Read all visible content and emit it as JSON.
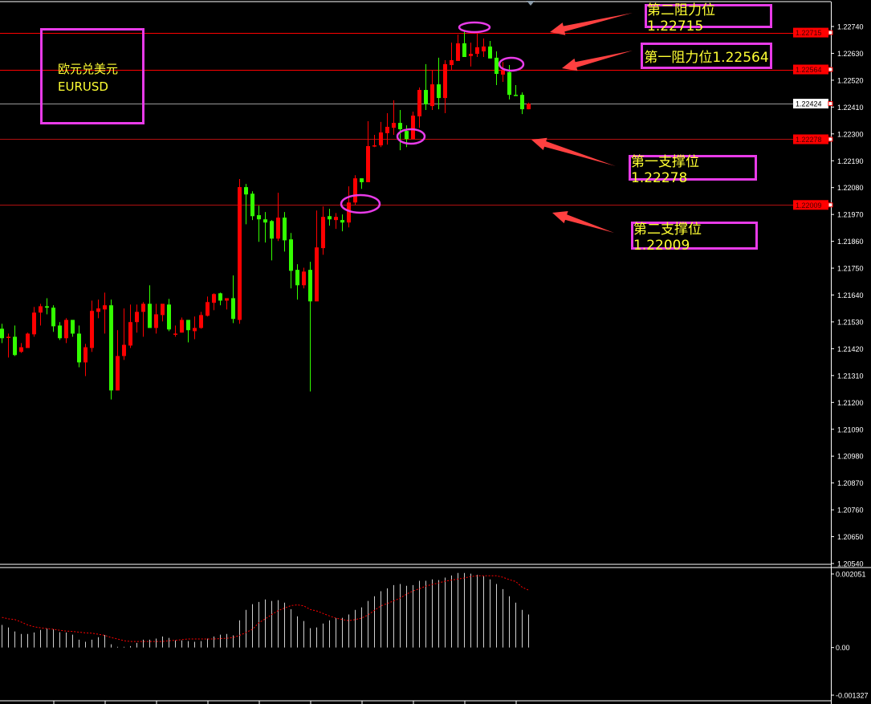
{
  "symbol_box": {
    "name_cn": "欧元兑美元",
    "ticker": "EURUSD"
  },
  "annotations": {
    "resistance_2": "第二阻力位1.22715",
    "resistance_1": "第一阻力位1.22564",
    "support_1": "第一支撑位1.22278",
    "support_2": "第二支撑位1.22009"
  },
  "colors": {
    "background": "#000000",
    "bull_candle": "#ff0000",
    "bear_candle": "#33ff00",
    "annotation_border": "#e83be8",
    "annotation_text": "#ffff33",
    "arrow": "#ff4040",
    "level_line": "#ff0000",
    "macd_histogram": "#d0d0d0",
    "macd_signal": "#ff0000"
  },
  "chart_data": [
    {
      "type": "candlestick",
      "symbol": "EURUSD",
      "ylim": [
        1.2054,
        1.2274
      ],
      "y_ticks": [
        "1.22740",
        "1.22630",
        "1.22520",
        "1.22410",
        "1.22300",
        "1.22190",
        "1.22080",
        "1.21970",
        "1.21860",
        "1.21750",
        "1.21640",
        "1.21530",
        "1.21420",
        "1.21310",
        "1.21200",
        "1.21090",
        "1.20980",
        "1.20870",
        "1.20760",
        "1.20650",
        "1.20540"
      ],
      "price_labels": [
        {
          "value": "1.22715",
          "kind": "level"
        },
        {
          "value": "1.22564",
          "kind": "level"
        },
        {
          "value": "1.22424",
          "kind": "current"
        },
        {
          "value": "1.22278",
          "kind": "level"
        },
        {
          "value": "1.22009",
          "kind": "level"
        }
      ],
      "levels": [
        1.22715,
        1.22564,
        1.22424,
        1.22278,
        1.22009
      ],
      "candles_ohlc": [
        [
          1.21502,
          1.21522,
          1.21443,
          1.21463
        ],
        [
          1.21466,
          1.21482,
          1.21384,
          1.21469
        ],
        [
          1.21469,
          1.21515,
          1.2139,
          1.21394
        ],
        [
          1.21407,
          1.21443,
          1.21403,
          1.21426
        ],
        [
          1.21423,
          1.21486,
          1.21423,
          1.21482
        ],
        [
          1.21479,
          1.21591,
          1.21469,
          1.21568
        ],
        [
          1.21568,
          1.21604,
          1.21515,
          1.21594
        ],
        [
          1.21594,
          1.21627,
          1.21561,
          1.21588
        ],
        [
          1.21588,
          1.21598,
          1.21489,
          1.21512
        ],
        [
          1.21515,
          1.21529,
          1.21456,
          1.21463
        ],
        [
          1.21463,
          1.21545,
          1.21443,
          1.21538
        ],
        [
          1.21538,
          1.21538,
          1.21469,
          1.21482
        ],
        [
          1.21482,
          1.21515,
          1.21344,
          1.21364
        ],
        [
          1.21364,
          1.2144,
          1.21308,
          1.21426
        ],
        [
          1.21423,
          1.21617,
          1.21407,
          1.21575
        ],
        [
          1.21571,
          1.21621,
          1.21545,
          1.21585
        ],
        [
          1.21581,
          1.2165,
          1.21482,
          1.21598
        ],
        [
          1.21598,
          1.21621,
          1.21212,
          1.21249
        ],
        [
          1.21249,
          1.21496,
          1.21249,
          1.2139
        ],
        [
          1.2139,
          1.21585,
          1.21374,
          1.21436
        ],
        [
          1.21433,
          1.21601,
          1.21423,
          1.21529
        ],
        [
          1.21529,
          1.21601,
          1.21486,
          1.21571
        ],
        [
          1.21571,
          1.21611,
          1.21469,
          1.21604
        ],
        [
          1.21604,
          1.2168,
          1.21505,
          1.21505
        ],
        [
          1.21505,
          1.21604,
          1.21482,
          1.21561
        ],
        [
          1.21558,
          1.21604,
          1.21532,
          1.21604
        ],
        [
          1.21601,
          1.21624,
          1.21492,
          1.21499
        ],
        [
          1.21479,
          1.21515,
          1.21469,
          1.21482
        ],
        [
          1.21486,
          1.21548,
          1.21486,
          1.21538
        ],
        [
          1.21538,
          1.21538,
          1.21446,
          1.21496
        ],
        [
          1.21492,
          1.21552,
          1.21459,
          1.21505
        ],
        [
          1.21505,
          1.21571,
          1.21502,
          1.21558
        ],
        [
          1.21555,
          1.21634,
          1.21552,
          1.21611
        ],
        [
          1.21608,
          1.21647,
          1.21578,
          1.21644
        ],
        [
          1.21647,
          1.2165,
          1.21598,
          1.21617
        ],
        [
          1.21617,
          1.21627,
          1.21581,
          1.21627
        ],
        [
          1.21627,
          1.2172,
          1.21525,
          1.21542
        ],
        [
          1.21538,
          1.22115,
          1.21522,
          1.22082
        ],
        [
          1.22082,
          1.22095,
          1.2193,
          1.22052
        ],
        [
          1.22055,
          1.22065,
          1.21947,
          1.21963
        ],
        [
          1.21967,
          1.22006,
          1.21858,
          1.2195
        ],
        [
          1.2195,
          1.2198,
          1.21855,
          1.21937
        ],
        [
          1.21943,
          1.21947,
          1.21782,
          1.21871
        ],
        [
          1.21871,
          1.22059,
          1.21861,
          1.21957
        ],
        [
          1.21957,
          1.2198,
          1.21818,
          1.21864
        ],
        [
          1.21868,
          1.21894,
          1.21667,
          1.21739
        ],
        [
          1.21743,
          1.21766,
          1.21621,
          1.2168
        ],
        [
          1.2168,
          1.21752,
          1.21667,
          1.21736
        ],
        [
          1.21743,
          1.21776,
          1.21245,
          1.21614
        ],
        [
          1.21614,
          1.21986,
          1.21614,
          1.21835
        ],
        [
          1.21832,
          1.22003,
          1.21805,
          1.2196
        ],
        [
          1.21963,
          1.21993,
          1.21924,
          1.2195
        ],
        [
          1.21947,
          1.21976,
          1.21911,
          1.2196
        ],
        [
          1.21947,
          1.2197,
          1.21901,
          1.21937
        ],
        [
          1.21937,
          1.22085,
          1.21917,
          1.22019
        ],
        [
          1.22019,
          1.22131,
          1.22009,
          1.22118
        ],
        [
          1.22118,
          1.22118,
          1.22075,
          1.22102
        ],
        [
          1.22102,
          1.22352,
          1.22102,
          1.2225
        ],
        [
          1.2225,
          1.22296,
          1.22246,
          1.22253
        ],
        [
          1.22253,
          1.22349,
          1.22246,
          1.22306
        ],
        [
          1.22303,
          1.22385,
          1.22256,
          1.22329
        ],
        [
          1.22325,
          1.22438,
          1.22296,
          1.22345
        ],
        [
          1.22345,
          1.22398,
          1.22233,
          1.22319
        ],
        [
          1.22312,
          1.22335,
          1.22246,
          1.22279
        ],
        [
          1.22279,
          1.22391,
          1.22279,
          1.22375
        ],
        [
          1.22372,
          1.2249,
          1.22325,
          1.2248
        ],
        [
          1.2248,
          1.22586,
          1.22398,
          1.22421
        ],
        [
          1.22414,
          1.22559,
          1.22398,
          1.22503
        ],
        [
          1.22503,
          1.22612,
          1.22401,
          1.22447
        ],
        [
          1.22447,
          1.22602,
          1.22385,
          1.22586
        ],
        [
          1.22582,
          1.22674,
          1.22563,
          1.22602
        ],
        [
          1.22599,
          1.22707,
          1.22599,
          1.22671
        ],
        [
          1.22671,
          1.22724,
          1.22615,
          1.22615
        ],
        [
          1.22619,
          1.22674,
          1.22576,
          1.22628
        ],
        [
          1.22628,
          1.22717,
          1.22615,
          1.22655
        ],
        [
          1.22638,
          1.22691,
          1.22615,
          1.22658
        ],
        [
          1.22658,
          1.22681,
          1.22609,
          1.22609
        ],
        [
          1.22612,
          1.22638,
          1.225,
          1.22546
        ],
        [
          1.22543,
          1.22595,
          1.22513,
          1.22563
        ],
        [
          1.22553,
          1.22582,
          1.22441,
          1.2246
        ],
        [
          1.2246,
          1.225,
          1.22457,
          1.22457
        ],
        [
          1.2246,
          1.2247,
          1.22381,
          1.22401
        ],
        [
          1.22401,
          1.22428,
          1.22401,
          1.22424
        ]
      ]
    },
    {
      "type": "bar",
      "indicator": "MACD",
      "ylim": [
        -0.001327,
        0.002051
      ],
      "y_ticks": [
        "0.002051",
        "0.00",
        "-0.001327"
      ],
      "histogram": [
        0.00063,
        0.00056,
        0.00045,
        0.00038,
        0.00038,
        0.00042,
        0.00049,
        0.00053,
        0.00051,
        0.00043,
        0.00042,
        0.00036,
        0.00022,
        0.00016,
        0.00022,
        0.00029,
        0.00035,
        9e-05,
        2e-05,
        2e-05,
        4e-05,
        0.00013,
        0.00022,
        0.00022,
        0.00025,
        0.00031,
        0.00027,
        0.0002,
        0.0002,
        0.00018,
        0.00016,
        0.00018,
        0.00025,
        0.00031,
        0.00036,
        0.00038,
        0.00034,
        0.00076,
        0.00105,
        0.00121,
        0.00127,
        0.00134,
        0.0013,
        0.00132,
        0.00125,
        0.00107,
        0.00087,
        0.00074,
        0.00054,
        0.00056,
        0.00067,
        0.00076,
        0.00082,
        0.00083,
        0.00092,
        0.00105,
        0.00112,
        0.0013,
        0.00143,
        0.00157,
        0.00165,
        0.00174,
        0.00177,
        0.00172,
        0.00174,
        0.00186,
        0.00186,
        0.0019,
        0.00188,
        0.00195,
        0.00201,
        0.00208,
        0.00208,
        0.00206,
        0.00203,
        0.00199,
        0.0019,
        0.00177,
        0.00163,
        0.00143,
        0.00125,
        0.00105,
        0.00092
      ],
      "signal": [
        0.00084,
        0.0008,
        0.00078,
        0.00071,
        0.00063,
        0.00058,
        0.00055,
        0.00053,
        0.00051,
        0.00048,
        0.00046,
        0.00045,
        0.00043,
        0.00041,
        0.0004,
        0.00037,
        0.00034,
        0.00028,
        0.00024,
        0.00019,
        0.00017,
        0.00017,
        0.00017,
        0.00017,
        0.00017,
        0.00017,
        0.00019,
        0.0002,
        0.00022,
        0.00024,
        0.00024,
        0.00024,
        0.00024,
        0.00024,
        0.00025,
        0.00026,
        0.00028,
        0.00034,
        0.00042,
        0.00051,
        0.00069,
        0.0008,
        0.00092,
        0.00103,
        0.0011,
        0.00117,
        0.00119,
        0.00116,
        0.00106,
        0.00102,
        0.00095,
        0.00088,
        0.00082,
        0.00078,
        0.00075,
        0.00078,
        0.00082,
        0.00091,
        0.00104,
        0.00116,
        0.00123,
        0.0013,
        0.00138,
        0.00149,
        0.00158,
        0.00164,
        0.00171,
        0.00176,
        0.0018,
        0.00185,
        0.00188,
        0.00191,
        0.00194,
        0.00198,
        0.002,
        0.002,
        0.002,
        0.002,
        0.00196,
        0.00189,
        0.00184,
        0.00168,
        0.0016
      ]
    }
  ]
}
